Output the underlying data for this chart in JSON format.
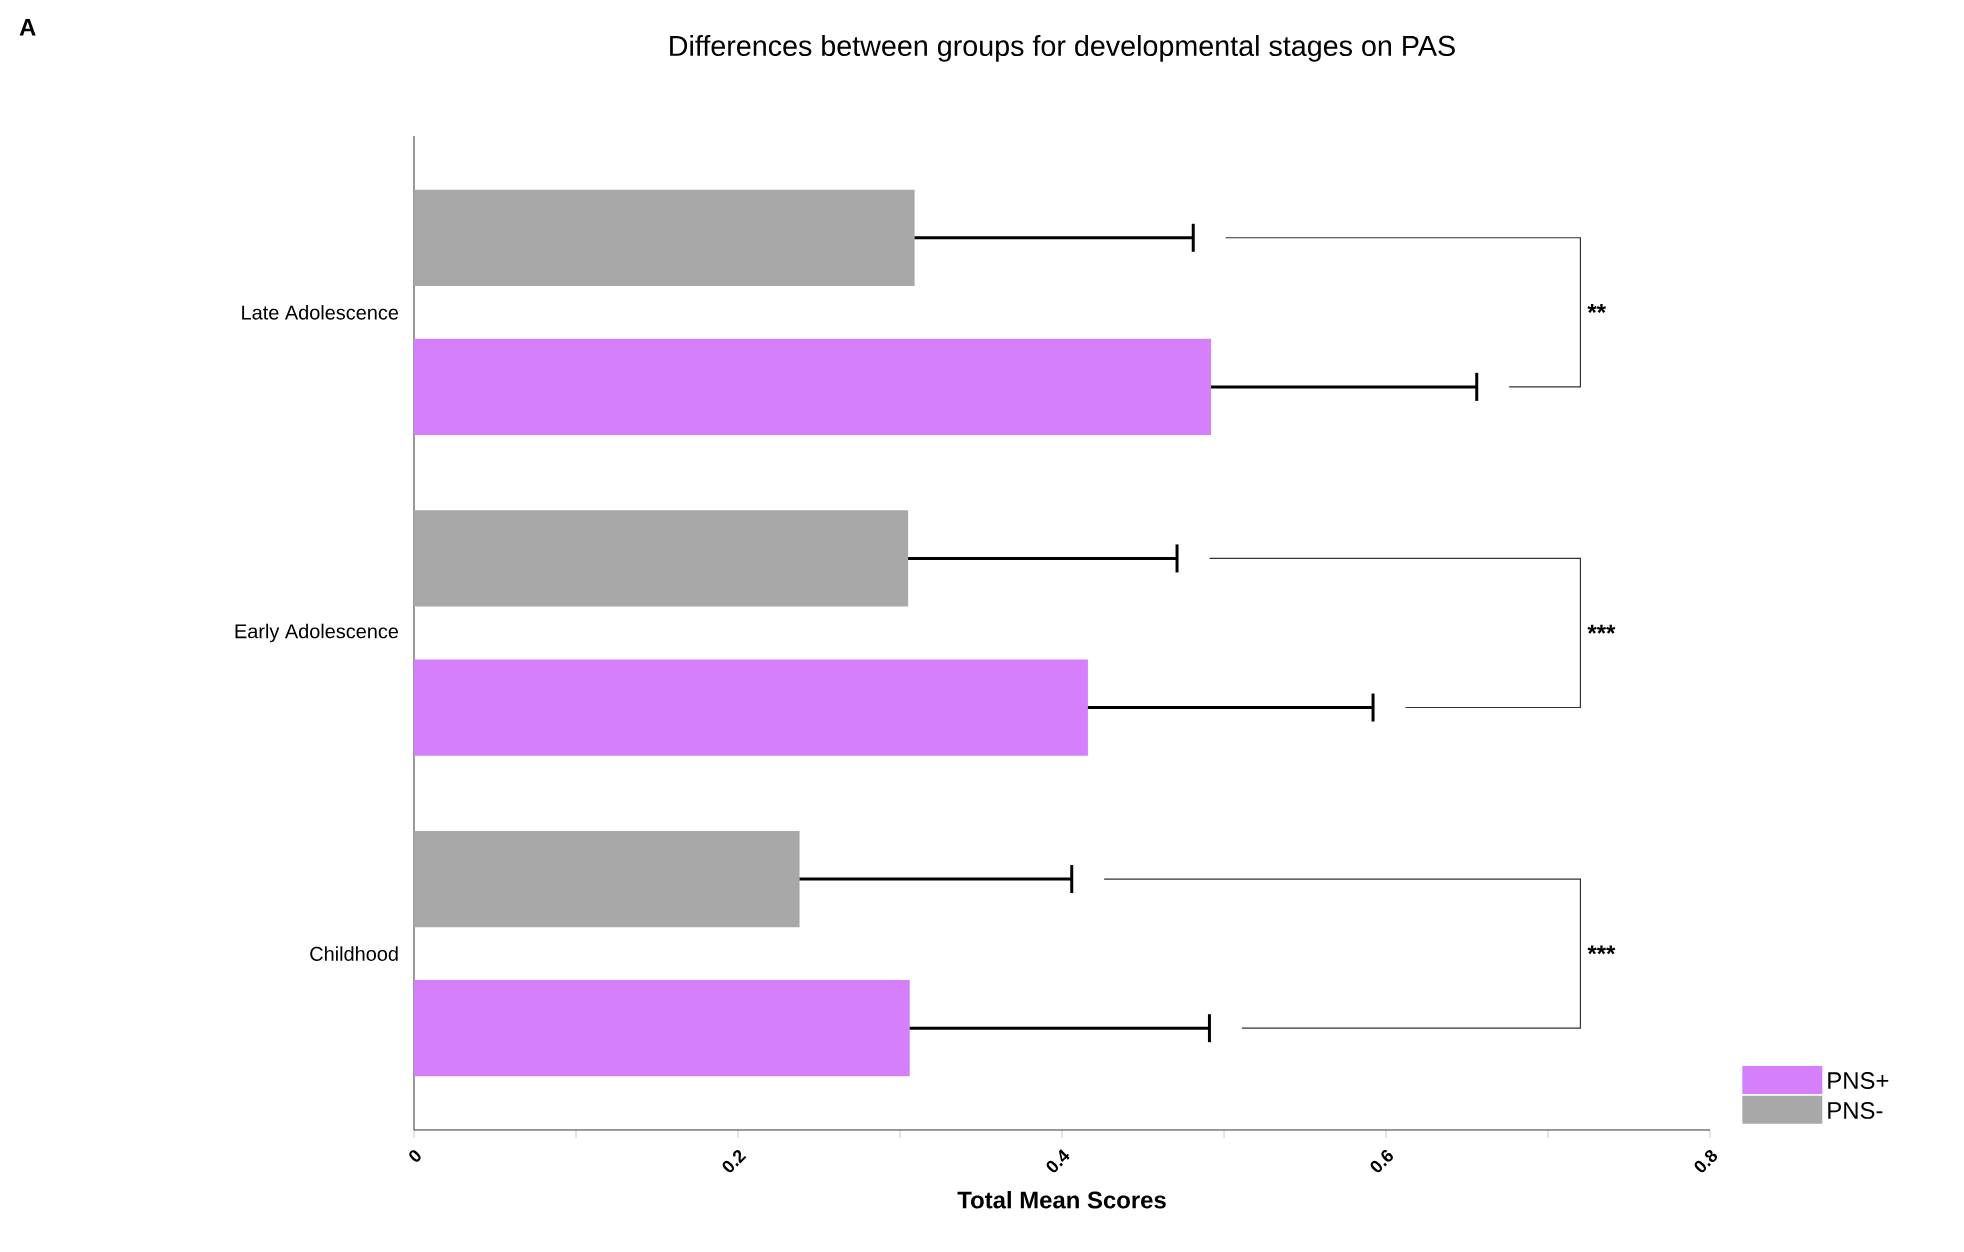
{
  "chart_data": {
    "type": "bar",
    "orientation": "horizontal",
    "title": "Differences between groups for developmental stages on PAS",
    "xlabel": "Total Mean Scores",
    "categories": [
      "Late Adolescence",
      "Early Adolescence",
      "Childhood"
    ],
    "series": [
      {
        "name": "PNS+",
        "color": "#d580fa",
        "values": [
          0.492,
          0.416,
          0.306
        ],
        "errors": [
          [
            0.492,
            0.656
          ],
          [
            0.416,
            0.592
          ],
          [
            0.306,
            0.491
          ]
        ]
      },
      {
        "name": "PNS-",
        "color": "#a8a8a8",
        "values": [
          0.309,
          0.305,
          0.238
        ],
        "errors": [
          [
            0.309,
            0.481
          ],
          [
            0.305,
            0.471
          ],
          [
            0.238,
            0.406
          ]
        ]
      }
    ],
    "xlim": [
      0,
      0.8
    ],
    "xticks": [
      0,
      {
        "value": 0.1,
        "label": null
      },
      0.2,
      {
        "value": 0.3,
        "label": null
      },
      0.4,
      {
        "value": 0.5,
        "label": null
      },
      0.6,
      {
        "value": 0.7,
        "label": null
      },
      0.8
    ],
    "annotations": [
      "A",
      "**",
      "***",
      "***"
    ],
    "legend": "bottom right",
    "grid": false
  }
}
